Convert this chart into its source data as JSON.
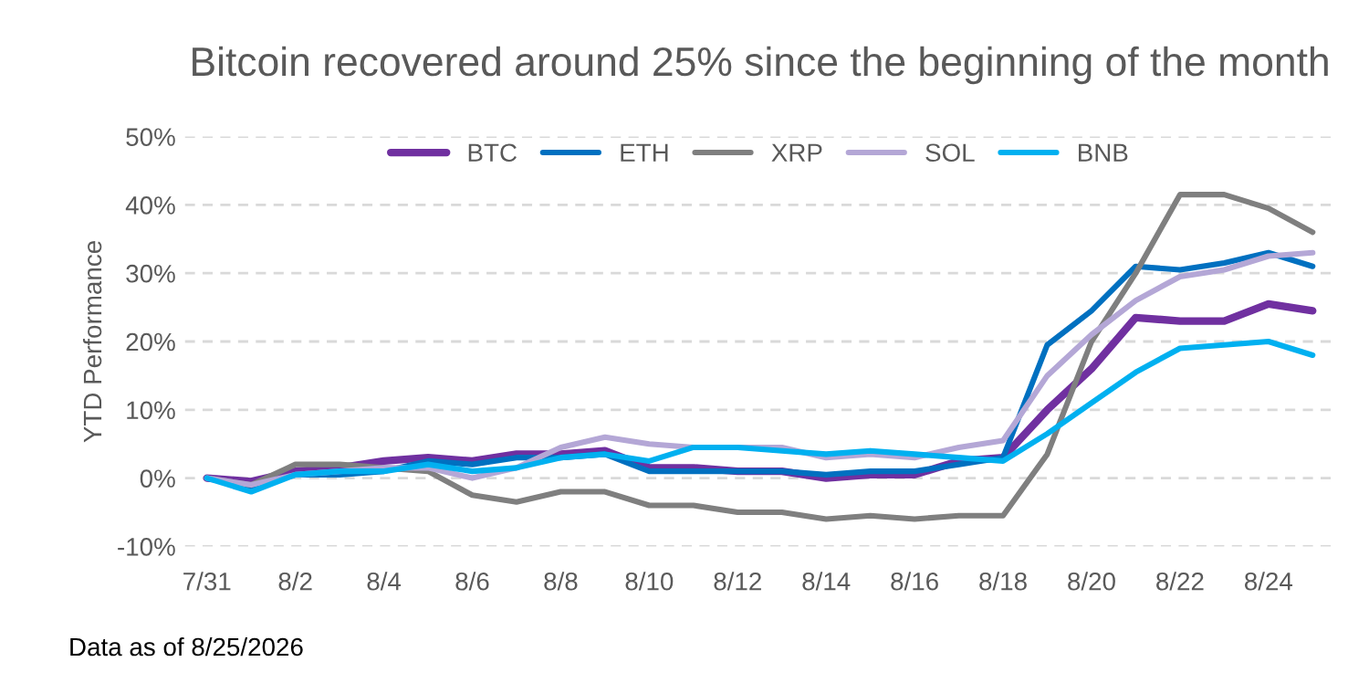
{
  "chart_data": {
    "type": "line",
    "title": "Bitcoin recovered around 25% since the beginning of the month",
    "ylabel": "YTD Performance",
    "categories": [
      "7/31",
      null,
      "8/2",
      null,
      "8/4",
      null,
      "8/6",
      null,
      "8/8",
      null,
      "8/10",
      null,
      "8/12",
      null,
      "8/14",
      null,
      "8/16",
      null,
      "8/18",
      null,
      "8/20",
      null,
      "8/22",
      null,
      "8/24",
      null
    ],
    "series": [
      {
        "name": "BTC",
        "color": "#7030a0",
        "values": [
          0,
          -0.5,
          1,
          1.5,
          2.5,
          3,
          2.5,
          3.5,
          3.5,
          4,
          1.5,
          1.5,
          1,
          1,
          0,
          0.5,
          0.5,
          2.5,
          3,
          10,
          16,
          23.5,
          23,
          23,
          25.5,
          24.5
        ]
      },
      {
        "name": "ETH",
        "color": "#0070c0",
        "values": [
          0,
          -1.5,
          0.5,
          0.5,
          1,
          2.5,
          2,
          3,
          3,
          3.5,
          1,
          1,
          1,
          1,
          0.5,
          1,
          1,
          2,
          3,
          19.5,
          24.5,
          31,
          30.5,
          31.5,
          33,
          31
        ]
      },
      {
        "name": "XRP",
        "color": "#7f7f7f",
        "values": [
          0,
          -1,
          2,
          2,
          1.5,
          1,
          -2.5,
          -3.5,
          -2,
          -2,
          -4,
          -4,
          -5,
          -5,
          -6,
          -5.5,
          -6,
          -5.5,
          -5.5,
          3.5,
          20,
          30,
          41.5,
          41.5,
          39.5,
          36
        ]
      },
      {
        "name": "SOL",
        "color": "#b4a7d6",
        "values": [
          0,
          -1,
          0.5,
          1,
          1.5,
          1.5,
          0,
          1.5,
          4.5,
          6,
          5,
          4.5,
          4.5,
          4.5,
          3,
          3.5,
          3,
          4.5,
          5.5,
          15,
          21,
          26,
          29.5,
          30.5,
          32.5,
          33
        ]
      },
      {
        "name": "BNB",
        "color": "#00b0f0",
        "values": [
          0,
          -2,
          0.5,
          1,
          1,
          2,
          1,
          1.5,
          3,
          3.5,
          2.5,
          4.5,
          4.5,
          4,
          3.5,
          4,
          3.5,
          3,
          2.5,
          6.5,
          11,
          15.5,
          19,
          19.5,
          20,
          18
        ]
      }
    ],
    "ylim": [
      -10,
      50
    ],
    "yticks": [
      {
        "value": -10,
        "label": "-10%"
      },
      {
        "value": 0,
        "label": "0%"
      },
      {
        "value": 10,
        "label": "10%"
      },
      {
        "value": 20,
        "label": "20%"
      },
      {
        "value": 30,
        "label": "30%"
      },
      {
        "value": 40,
        "label": "40%"
      },
      {
        "value": 50,
        "label": "50%"
      }
    ],
    "grid": "y",
    "legend": "top",
    "line_style": "solid",
    "marker": "none",
    "annotations": [
      "Data as of 8/25/2026"
    ]
  }
}
